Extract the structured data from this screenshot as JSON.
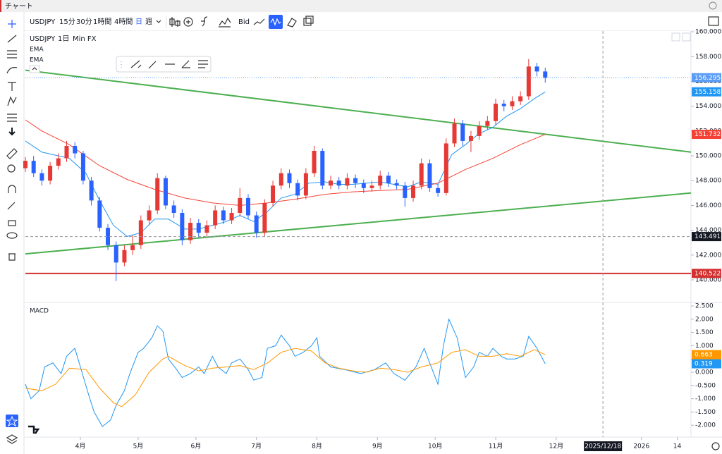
{
  "title_bar": "チャート",
  "toolbar": {
    "symbol": "USDJPY",
    "intervals": [
      "15分",
      "30分",
      "1時間",
      "4時間",
      "日",
      "週"
    ],
    "price_source": "Bid"
  },
  "chart_data": [
    {
      "type": "candlestick",
      "symbol": "USDJPY",
      "interval": "1日",
      "source": "Min FX",
      "up_color": "#e53935",
      "down_color": "#2962ff",
      "last_price_color": "#5b9cf6",
      "x": [
        0,
        3,
        6,
        9,
        12,
        15,
        18,
        21,
        24,
        27,
        30,
        33,
        36,
        39,
        42,
        45,
        48,
        51,
        54,
        57,
        60,
        63,
        66,
        69,
        72,
        75,
        78,
        81,
        84,
        87,
        90,
        93,
        96,
        99,
        102,
        105,
        108,
        111,
        114,
        117,
        120,
        123,
        126,
        129,
        132,
        135,
        138,
        141,
        144,
        147,
        150,
        153,
        156,
        159,
        162,
        165,
        168,
        171,
        174,
        177,
        180,
        183,
        186,
        189
      ],
      "ohlc": [
        [
          149.0,
          149.9,
          148.7,
          149.6
        ],
        [
          149.6,
          150.0,
          148.3,
          148.6
        ],
        [
          148.6,
          148.9,
          147.6,
          148.0
        ],
        [
          148.0,
          149.5,
          147.7,
          149.2
        ],
        [
          149.2,
          150.2,
          148.9,
          149.8
        ],
        [
          149.8,
          151.2,
          149.5,
          150.8
        ],
        [
          150.8,
          151.1,
          149.8,
          150.2
        ],
        [
          150.2,
          150.4,
          147.7,
          148.0
        ],
        [
          148.0,
          148.3,
          146.0,
          146.4
        ],
        [
          146.4,
          146.7,
          143.9,
          144.2
        ],
        [
          144.2,
          144.5,
          142.4,
          142.8
        ],
        [
          142.8,
          143.1,
          139.9,
          141.4
        ],
        [
          141.4,
          142.8,
          141.1,
          142.4
        ],
        [
          142.4,
          143.6,
          142.0,
          142.8
        ],
        [
          142.8,
          145.2,
          142.5,
          144.8
        ],
        [
          144.8,
          146.0,
          144.4,
          145.6
        ],
        [
          145.6,
          148.6,
          145.3,
          148.2
        ],
        [
          148.2,
          148.4,
          145.7,
          146.0
        ],
        [
          146.0,
          146.4,
          145.0,
          145.4
        ],
        [
          145.4,
          145.7,
          142.8,
          143.2
        ],
        [
          143.2,
          145.0,
          142.9,
          144.6
        ],
        [
          144.6,
          144.9,
          143.4,
          143.8
        ],
        [
          143.8,
          144.8,
          143.5,
          144.4
        ],
        [
          144.4,
          146.0,
          144.1,
          145.6
        ],
        [
          145.6,
          145.9,
          144.5,
          144.8
        ],
        [
          144.8,
          145.8,
          144.5,
          145.4
        ],
        [
          145.4,
          147.4,
          145.1,
          146.6
        ],
        [
          146.6,
          146.9,
          144.9,
          145.2
        ],
        [
          145.2,
          145.5,
          143.4,
          143.8
        ],
        [
          143.8,
          146.5,
          143.5,
          146.2
        ],
        [
          146.2,
          148.0,
          145.9,
          147.6
        ],
        [
          147.6,
          149.0,
          147.3,
          148.6
        ],
        [
          148.6,
          148.9,
          147.4,
          147.8
        ],
        [
          147.8,
          148.1,
          146.4,
          146.8
        ],
        [
          146.8,
          149.0,
          146.5,
          148.6
        ],
        [
          148.6,
          150.8,
          148.3,
          150.4
        ],
        [
          150.4,
          150.6,
          147.3,
          147.6
        ],
        [
          147.6,
          148.4,
          147.3,
          148.0
        ],
        [
          148.0,
          148.3,
          147.3,
          147.6
        ],
        [
          147.6,
          148.6,
          147.3,
          148.2
        ],
        [
          148.2,
          148.5,
          147.4,
          147.8
        ],
        [
          147.8,
          148.1,
          147.0,
          147.4
        ],
        [
          147.4,
          148.0,
          147.1,
          147.6
        ],
        [
          147.6,
          148.8,
          147.3,
          148.4
        ],
        [
          148.4,
          148.7,
          147.5,
          147.8
        ],
        [
          147.8,
          148.1,
          147.3,
          147.6
        ],
        [
          147.6,
          147.9,
          145.9,
          146.6
        ],
        [
          146.6,
          148.0,
          146.3,
          147.6
        ],
        [
          147.6,
          149.8,
          147.3,
          149.4
        ],
        [
          149.4,
          149.7,
          147.1,
          147.4
        ],
        [
          147.4,
          147.7,
          146.7,
          147.0
        ],
        [
          147.0,
          151.4,
          146.8,
          151.0
        ],
        [
          151.0,
          153.0,
          150.7,
          152.6
        ],
        [
          152.6,
          152.9,
          150.8,
          151.2
        ],
        [
          151.2,
          152.0,
          150.3,
          151.6
        ],
        [
          151.6,
          152.8,
          151.3,
          152.4
        ],
        [
          152.4,
          153.2,
          152.1,
          152.8
        ],
        [
          152.8,
          154.6,
          152.5,
          154.2
        ],
        [
          154.2,
          154.5,
          153.6,
          154.0
        ],
        [
          154.0,
          154.8,
          153.7,
          154.4
        ],
        [
          154.4,
          155.2,
          154.1,
          154.8
        ],
        [
          154.8,
          157.8,
          154.5,
          157.2
        ],
        [
          157.2,
          157.5,
          156.4,
          156.8
        ],
        [
          156.8,
          157.1,
          155.9,
          156.295
        ]
      ],
      "series": [
        {
          "name": "EMA",
          "color": "#2196f3",
          "x": [
            0,
            6,
            16,
            22,
            27,
            32,
            37,
            42,
            47,
            52,
            58,
            63,
            68,
            73,
            78,
            83,
            88,
            93,
            98,
            103,
            109,
            114,
            119,
            124,
            129,
            134,
            139,
            144,
            150,
            155,
            160,
            165,
            170,
            175,
            180,
            185,
            189
          ],
          "values": [
            151.2,
            150.3,
            149.8,
            148.6,
            146.4,
            144.4,
            143.5,
            143.8,
            144.9,
            144.9,
            144.1,
            144.1,
            144.4,
            144.7,
            145.2,
            144.7,
            145.5,
            146.6,
            146.9,
            147.8,
            147.9,
            147.7,
            147.7,
            147.8,
            147.9,
            147.7,
            147.5,
            147.9,
            147.7,
            150.1,
            150.9,
            151.8,
            152.3,
            153.2,
            153.8,
            154.6,
            155.158
          ]
        },
        {
          "name": "EMA",
          "color": "#f44336",
          "x": [
            0,
            6,
            16,
            27,
            37,
            47,
            58,
            68,
            78,
            88,
            98,
            109,
            119,
            129,
            139,
            150,
            160,
            170,
            180,
            189
          ],
          "values": [
            152.9,
            152.0,
            150.9,
            149.2,
            148.1,
            147.3,
            146.6,
            146.2,
            146.0,
            146.2,
            146.5,
            146.9,
            147.1,
            147.2,
            147.3,
            147.8,
            148.9,
            149.8,
            150.9,
            151.732
          ]
        }
      ],
      "trendlines": [
        {
          "color": "#4caf50",
          "x": [
            0,
            242
          ],
          "values": [
            156.9,
            150.3
          ]
        },
        {
          "color": "#4caf50",
          "x": [
            0,
            242
          ],
          "values": [
            142.1,
            147.0
          ]
        }
      ],
      "hlines": [
        {
          "value": 140.522,
          "color": "#d32f2f"
        }
      ],
      "crosshair": {
        "x": 210,
        "x_label": "2025/12/18",
        "y": 143.491,
        "color": "#131722"
      },
      "xlim": [
        0,
        242
      ],
      "xticks": [
        {
          "value": 20,
          "label": "4月"
        },
        {
          "value": 41,
          "label": "5月"
        },
        {
          "value": 62,
          "label": "6月"
        },
        {
          "value": 84,
          "label": "7月"
        },
        {
          "value": 106,
          "label": "8月"
        },
        {
          "value": 128,
          "label": "9月"
        },
        {
          "value": 149,
          "label": "10月"
        },
        {
          "value": 171,
          "label": "11月"
        },
        {
          "value": 193,
          "label": "12月"
        },
        {
          "value": 224,
          "label": "2026"
        },
        {
          "value": 237,
          "label": "14"
        }
      ],
      "ylim": [
        138.24,
        160.06
      ],
      "yticks": [
        {
          "value": 140,
          "label": "140.000"
        },
        {
          "value": 142,
          "label": "142.000"
        },
        {
          "value": 144,
          "label": "144.000"
        },
        {
          "value": 146,
          "label": "146.000"
        },
        {
          "value": 148,
          "label": "148.000"
        },
        {
          "value": 150,
          "label": "150.000"
        },
        {
          "value": 152,
          "label": "152.000"
        },
        {
          "value": 154,
          "label": "154.000"
        },
        {
          "value": 156,
          "label": "156.000"
        },
        {
          "value": 158,
          "label": "158.000"
        },
        {
          "value": 160,
          "label": "160.000"
        }
      ]
    },
    {
      "type": "line",
      "title": "MACD",
      "series": [
        {
          "color": "#2196f3",
          "x": [
            0,
            2,
            5,
            7,
            10,
            13,
            15,
            18,
            20,
            23,
            25,
            28,
            31,
            33,
            36,
            38,
            41,
            43,
            46,
            48,
            50,
            52,
            55,
            57,
            60,
            63,
            65,
            68,
            70,
            73,
            75,
            78,
            81,
            83,
            86,
            88,
            91,
            93,
            96,
            98,
            101,
            104,
            106,
            107,
            111,
            116,
            122,
            127,
            131,
            134,
            138,
            142,
            145,
            147,
            150,
            152,
            154,
            157,
            160,
            163,
            165,
            168,
            170,
            173,
            175,
            178,
            181,
            183,
            186,
            189
          ],
          "values": [
            -0.45,
            -1.0,
            -0.7,
            0.2,
            0.35,
            -0.05,
            0.6,
            0.9,
            0.2,
            -0.85,
            -1.5,
            -2.05,
            -1.8,
            -1.25,
            -0.7,
            -0.05,
            0.75,
            0.9,
            1.3,
            1.75,
            1.55,
            0.5,
            0.1,
            -0.2,
            -0.05,
            0.2,
            -0.05,
            0.6,
            0.2,
            -0.05,
            0.35,
            0.5,
            0.1,
            -0.3,
            -0.2,
            0.9,
            1.0,
            1.4,
            1.0,
            0.6,
            0.75,
            1.0,
            1.3,
            0.6,
            0.2,
            0.1,
            -0.05,
            0.1,
            0.35,
            -0.05,
            -0.3,
            0.2,
            0.9,
            0.35,
            -0.45,
            1.0,
            2.0,
            1.3,
            -0.2,
            0.2,
            0.75,
            0.6,
            0.9,
            0.6,
            0.5,
            0.5,
            0.6,
            1.35,
            0.9,
            0.319
          ]
        },
        {
          "color": "#ff9800",
          "x": [
            0,
            6,
            11,
            16,
            22,
            27,
            32,
            35,
            40,
            45,
            50,
            52,
            58,
            63,
            68,
            73,
            78,
            83,
            88,
            93,
            98,
            104,
            109,
            114,
            119,
            124,
            129,
            134,
            139,
            144,
            150,
            155,
            160,
            165,
            170,
            175,
            180,
            185,
            189
          ],
          "values": [
            -0.6,
            -0.7,
            -0.45,
            0.15,
            0.1,
            -0.6,
            -1.15,
            -1.3,
            -0.85,
            0,
            0.5,
            0.6,
            0.25,
            0.05,
            0.15,
            0.2,
            0.25,
            0.1,
            0.35,
            0.75,
            0.9,
            0.8,
            0.35,
            0.15,
            0.05,
            0,
            0.15,
            0.1,
            0,
            0.2,
            0.35,
            0.75,
            0.85,
            0.6,
            0.6,
            0.7,
            0.6,
            0.85,
            0.663
          ]
        }
      ],
      "xlim": [
        0,
        242
      ],
      "ylim": [
        -2.447,
        2.606
      ],
      "yticks": [
        {
          "value": 2.5,
          "label": "2.500"
        },
        {
          "value": 2,
          "label": "2.000"
        },
        {
          "value": 1.5,
          "label": "1.500"
        },
        {
          "value": 1,
          "label": "1.000"
        },
        {
          "value": 0.5,
          "label": "0.500"
        },
        {
          "value": 0,
          "label": "0.000"
        },
        {
          "value": -0.5,
          "label": "-0.500"
        },
        {
          "value": -1,
          "label": "-1.000"
        },
        {
          "value": -1.5,
          "label": "-1.500"
        },
        {
          "value": -2,
          "label": "-2.000"
        }
      ]
    }
  ]
}
